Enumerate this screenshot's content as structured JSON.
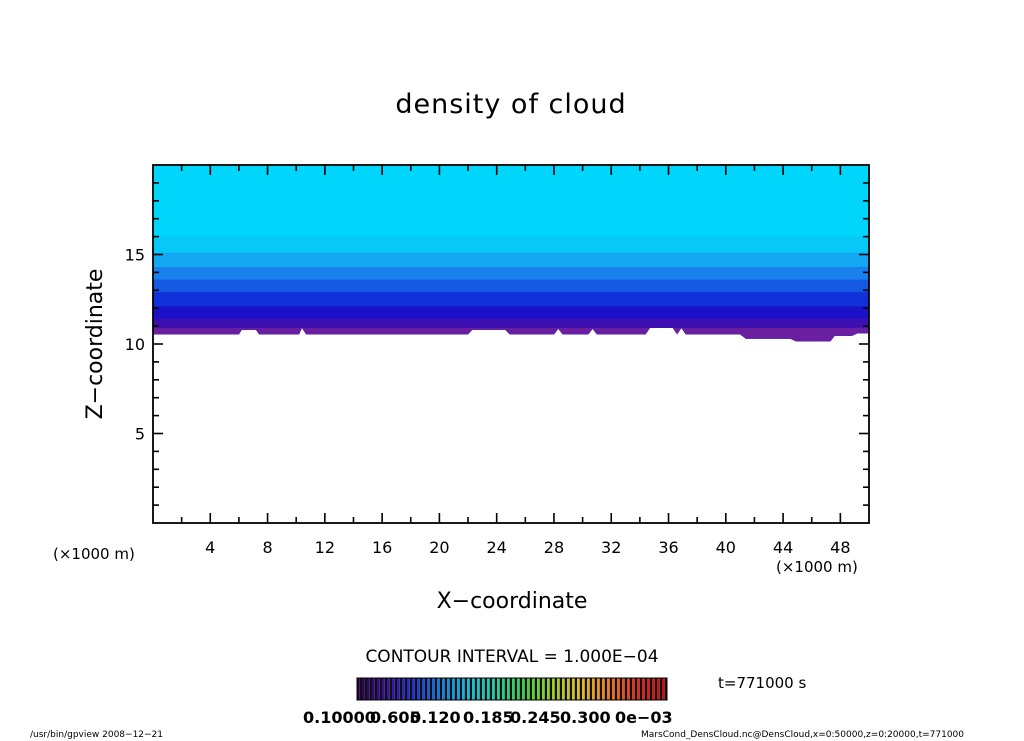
{
  "chart_data": {
    "type": "contour",
    "title": "density of cloud",
    "xlabel": "X−coordinate",
    "ylabel": "Z−coordinate",
    "x_unit": "(×1000 m)",
    "y_unit": "",
    "xlim": [
      0,
      50
    ],
    "ylim": [
      0,
      20
    ],
    "xticks": [
      4,
      8,
      12,
      16,
      20,
      24,
      28,
      32,
      36,
      40,
      44,
      48
    ],
    "yticks": [
      5,
      10,
      15
    ],
    "x_unit_label_left": "(×1000 m)",
    "x_unit_label_right": "(×1000 m)",
    "cloud_base_z": [
      [
        0,
        10.55
      ],
      [
        6,
        10.55
      ],
      [
        6.2,
        10.8
      ],
      [
        7.2,
        10.8
      ],
      [
        7.4,
        10.55
      ],
      [
        10.2,
        10.55
      ],
      [
        10.4,
        10.9
      ],
      [
        10.7,
        10.55
      ],
      [
        22,
        10.55
      ],
      [
        22.3,
        10.8
      ],
      [
        24.6,
        10.8
      ],
      [
        24.9,
        10.55
      ],
      [
        28,
        10.55
      ],
      [
        28.3,
        10.85
      ],
      [
        28.6,
        10.55
      ],
      [
        30.4,
        10.55
      ],
      [
        30.7,
        10.85
      ],
      [
        31,
        10.55
      ],
      [
        34.4,
        10.55
      ],
      [
        34.7,
        10.9
      ],
      [
        36.3,
        10.9
      ],
      [
        36.6,
        10.55
      ],
      [
        36.9,
        10.9
      ],
      [
        37.2,
        10.55
      ],
      [
        41,
        10.55
      ],
      [
        41.4,
        10.3
      ],
      [
        44.5,
        10.3
      ],
      [
        44.9,
        10.15
      ],
      [
        47.3,
        10.15
      ],
      [
        47.6,
        10.45
      ],
      [
        48.8,
        10.45
      ],
      [
        49.2,
        10.6
      ],
      [
        50,
        10.6
      ]
    ],
    "cloud_top_z": 20,
    "vertical_bands": [
      {
        "z": 10.9,
        "color": "#6a1fa0"
      },
      {
        "z": 11.4,
        "color": "#3d0fb0"
      },
      {
        "z": 12.1,
        "color": "#1a10c8"
      },
      {
        "z": 12.9,
        "color": "#1030d8"
      },
      {
        "z": 13.6,
        "color": "#1458e4"
      },
      {
        "z": 14.3,
        "color": "#1a80ec"
      },
      {
        "z": 15.1,
        "color": "#14a8f2"
      },
      {
        "z": 16.0,
        "color": "#08c8f8"
      },
      {
        "z": 20.0,
        "color": "#00d6fb"
      }
    ],
    "contour_interval": "CONTOUR INTERVAL = 1.000E−04",
    "colorbar": {
      "labels": [
        "0.10000",
        "0.605",
        "0.120",
        "0.185",
        "0.245",
        "0.300",
        "0e−03"
      ],
      "stops": [
        "#2a0050",
        "#3a10a0",
        "#2030d0",
        "#1080e0",
        "#10c0e0",
        "#20d0a0",
        "#40d040",
        "#a0d020",
        "#e0c020",
        "#f08020",
        "#e03020",
        "#c01010"
      ]
    },
    "time_label": "t=771000 s",
    "footer_left": "/usr/bin/gpview   2008−12−21",
    "footer_right": "MarsCond_DensCloud.nc@DensCloud,x=0:50000,z=0:20000,t=771000",
    "grid": false,
    "legend": "colorbar-bottom"
  }
}
